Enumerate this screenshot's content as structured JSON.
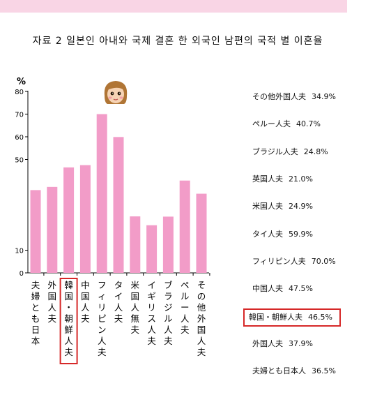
{
  "title": "자료 2 일본인 아내와 국제 결혼 한 외국인 남편의 국적 별 이혼율",
  "chart_data": {
    "type": "bar",
    "categories": [
      "夫婦とも日本",
      "外国人夫",
      "韓国・朝鮮人夫",
      "中国人夫",
      "フィリピン人夫",
      "タイ人夫",
      "米国人無夫",
      "イギリス人夫",
      "ブラジル人夫",
      "ペルー人夫",
      "その他外国人夫"
    ],
    "values": [
      36.5,
      37.9,
      46.5,
      47.5,
      70.0,
      59.9,
      24.9,
      21.0,
      24.8,
      40.7,
      34.9
    ],
    "ylabel": "%",
    "ylim": [
      0,
      80
    ],
    "yticks": [
      {
        "value": 0,
        "label": "0"
      },
      {
        "value": 10,
        "label": "10"
      },
      {
        "value": 50,
        "label": "50"
      },
      {
        "value": 60,
        "label": "60"
      },
      {
        "value": 70,
        "label": "70"
      },
      {
        "value": 80,
        "label": "80"
      }
    ],
    "bar_color": "#f29cc8",
    "highlight_category": "韓国・朝鮮人夫",
    "highlight_color": "#d62828"
  },
  "legend": [
    {
      "label": "その他外国人夫",
      "value": "34.9%"
    },
    {
      "label": "ペルー人夫",
      "value": "40.7%"
    },
    {
      "label": "ブラジル人夫",
      "value": "24.8%"
    },
    {
      "label": "英国人夫",
      "value": "21.0%"
    },
    {
      "label": "米国人夫",
      "value": "24.9%"
    },
    {
      "label": "タイ人夫",
      "value": "59.9%"
    },
    {
      "label": "フィリピン人夫",
      "value": "70.0%"
    },
    {
      "label": "中国人夫",
      "value": "47.5%"
    },
    {
      "label": "韓国・朝鮮人夫",
      "value": "46.5%",
      "highlight": true
    },
    {
      "label": "外国人夫",
      "value": "37.9%"
    },
    {
      "label": "夫婦とも日本人",
      "value": "36.5%"
    }
  ]
}
